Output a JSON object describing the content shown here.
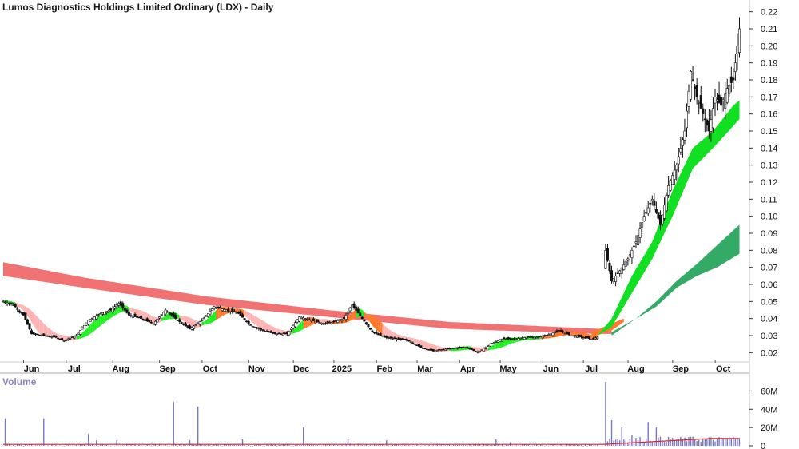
{
  "header": {
    "title": "Lumos Diagnostics Holdings Limited Ordinary (LDX) - Daily",
    "volume_label": "Volume"
  },
  "chart_data": [
    {
      "type": "candlestick",
      "title": "Lumos Diagnostics Holdings Limited Ordinary (LDX) - Daily",
      "y_axis_side": "right",
      "ylim": [
        0.015,
        0.225
      ],
      "y_ticks": [
        0.02,
        0.03,
        0.04,
        0.05,
        0.06,
        0.07,
        0.08,
        0.09,
        0.1,
        0.11,
        0.12,
        0.13,
        0.14,
        0.15,
        0.16,
        0.17,
        0.18,
        0.19,
        0.2,
        0.21,
        0.22
      ],
      "y_tick_labels": [
        "0.02",
        "0.03",
        "0.04",
        "0.05",
        "0.06",
        "0.07",
        "0.08",
        "0.09",
        "0.10",
        "0.11",
        "0.12",
        "0.13",
        "0.14",
        "0.15",
        "0.16",
        "0.17",
        "0.18",
        "0.19",
        "0.20",
        "0.21",
        "0.22"
      ],
      "x_axis": {
        "unit": "trading day index",
        "range": [
          0,
          352
        ],
        "month_labels": [
          {
            "label": "Jun",
            "index": 14
          },
          {
            "label": "Jul",
            "index": 35
          },
          {
            "label": "Aug",
            "index": 58
          },
          {
            "label": "Sep",
            "index": 81
          },
          {
            "label": "Oct",
            "index": 102
          },
          {
            "label": "Nov",
            "index": 125
          },
          {
            "label": "Dec",
            "index": 147
          },
          {
            "label": "2025",
            "index": 167
          },
          {
            "label": "Feb",
            "index": 188
          },
          {
            "label": "Mar",
            "index": 208
          },
          {
            "label": "Apr",
            "index": 229
          },
          {
            "label": "May",
            "index": 249
          },
          {
            "label": "Jun",
            "index": 270
          },
          {
            "label": "Jul",
            "index": 290
          },
          {
            "label": "Aug",
            "index": 312
          },
          {
            "label": "Sep",
            "index": 334
          },
          {
            "label": "Oct",
            "index": 355
          }
        ]
      },
      "close_path": [
        [
          0,
          0.05
        ],
        [
          5,
          0.048
        ],
        [
          10,
          0.042
        ],
        [
          14,
          0.031
        ],
        [
          20,
          0.03
        ],
        [
          26,
          0.029
        ],
        [
          30,
          0.027
        ],
        [
          36,
          0.03
        ],
        [
          42,
          0.039
        ],
        [
          48,
          0.043
        ],
        [
          53,
          0.045
        ],
        [
          57,
          0.049
        ],
        [
          62,
          0.042
        ],
        [
          68,
          0.04
        ],
        [
          74,
          0.037
        ],
        [
          80,
          0.045
        ],
        [
          86,
          0.039
        ],
        [
          92,
          0.034
        ],
        [
          98,
          0.039
        ],
        [
          104,
          0.047
        ],
        [
          110,
          0.045
        ],
        [
          116,
          0.043
        ],
        [
          122,
          0.036
        ],
        [
          128,
          0.033
        ],
        [
          134,
          0.031
        ],
        [
          140,
          0.031
        ],
        [
          146,
          0.041
        ],
        [
          152,
          0.039
        ],
        [
          158,
          0.037
        ],
        [
          163,
          0.038
        ],
        [
          168,
          0.04
        ],
        [
          172,
          0.048
        ],
        [
          177,
          0.04
        ],
        [
          182,
          0.032
        ],
        [
          188,
          0.029
        ],
        [
          194,
          0.028
        ],
        [
          200,
          0.027
        ],
        [
          206,
          0.023
        ],
        [
          212,
          0.021
        ],
        [
          218,
          0.022
        ],
        [
          224,
          0.023
        ],
        [
          229,
          0.023
        ],
        [
          234,
          0.02
        ],
        [
          240,
          0.025
        ],
        [
          246,
          0.028
        ],
        [
          252,
          0.028
        ],
        [
          258,
          0.029
        ],
        [
          264,
          0.029
        ],
        [
          270,
          0.031
        ],
        [
          274,
          0.033
        ],
        [
          280,
          0.03
        ],
        [
          286,
          0.029
        ],
        [
          290,
          0.028
        ],
        [
          293,
          0.029
        ],
        [
          297,
          0.08
        ],
        [
          300,
          0.062
        ],
        [
          304,
          0.068
        ],
        [
          308,
          0.075
        ],
        [
          312,
          0.085
        ],
        [
          316,
          0.1
        ],
        [
          320,
          0.11
        ],
        [
          324,
          0.095
        ],
        [
          328,
          0.118
        ],
        [
          332,
          0.13
        ],
        [
          336,
          0.15
        ],
        [
          339,
          0.185
        ],
        [
          342,
          0.17
        ],
        [
          345,
          0.16
        ],
        [
          348,
          0.15
        ],
        [
          351,
          0.17
        ],
        [
          354,
          0.165
        ],
        [
          357,
          0.175
        ],
        [
          360,
          0.18
        ],
        [
          363,
          0.21
        ]
      ],
      "long_term_band": {
        "color": "#f07272",
        "path": [
          [
            0,
            0.073,
            0.065
          ],
          [
            40,
            0.064,
            0.058
          ],
          [
            100,
            0.053,
            0.048
          ],
          [
            160,
            0.045,
            0.041
          ],
          [
            220,
            0.038,
            0.034
          ],
          [
            293,
            0.034,
            0.031
          ],
          [
            300,
            0.033,
            0.031
          ]
        ]
      },
      "short_term_band": {
        "colors": {
          "up": "#22ee22",
          "down": "#ffb3b3",
          "cross": "#ff7a2a"
        },
        "note": "short-term moving average ribbon"
      },
      "upper_green_band": {
        "color": "#11e022",
        "path": [
          [
            293,
            0.03,
            0.03
          ],
          [
            300,
            0.04,
            0.035
          ],
          [
            310,
            0.065,
            0.055
          ],
          [
            320,
            0.085,
            0.075
          ],
          [
            330,
            0.115,
            0.1
          ],
          [
            340,
            0.14,
            0.128
          ],
          [
            350,
            0.15,
            0.14
          ],
          [
            360,
            0.165,
            0.153
          ],
          [
            363,
            0.168,
            0.157
          ]
        ]
      },
      "lower_green_band": {
        "color": "#33aa66",
        "path": [
          [
            300,
            0.032,
            0.03
          ],
          [
            312,
            0.04,
            0.04
          ],
          [
            322,
            0.05,
            0.047
          ],
          [
            332,
            0.062,
            0.058
          ],
          [
            342,
            0.072,
            0.065
          ],
          [
            352,
            0.083,
            0.07
          ],
          [
            363,
            0.095,
            0.078
          ]
        ]
      }
    },
    {
      "type": "bar",
      "title": "Volume",
      "y_axis_side": "right",
      "ylim": [
        0,
        70
      ],
      "unit": "M",
      "y_ticks": [
        0,
        20,
        40,
        60
      ],
      "y_tick_labels": [
        "0",
        "20M",
        "40M",
        "60M"
      ],
      "spikes": [
        {
          "index": 1,
          "value": 30
        },
        {
          "index": 20,
          "value": 30
        },
        {
          "index": 42,
          "value": 13
        },
        {
          "index": 46,
          "value": 6
        },
        {
          "index": 56,
          "value": 6
        },
        {
          "index": 84,
          "value": 48
        },
        {
          "index": 96,
          "value": 43
        },
        {
          "index": 92,
          "value": 6
        },
        {
          "index": 118,
          "value": 7
        },
        {
          "index": 148,
          "value": 20
        },
        {
          "index": 170,
          "value": 7
        },
        {
          "index": 189,
          "value": 6
        },
        {
          "index": 243,
          "value": 7
        },
        {
          "index": 250,
          "value": 4
        },
        {
          "index": 297,
          "value": 70
        },
        {
          "index": 300,
          "value": 28
        },
        {
          "index": 305,
          "value": 20
        },
        {
          "index": 310,
          "value": 12
        },
        {
          "index": 318,
          "value": 26
        },
        {
          "index": 322,
          "value": 20
        },
        {
          "index": 340,
          "value": 10
        },
        {
          "index": 360,
          "value": 10
        }
      ],
      "average_line_color": "#dd2222",
      "bar_color": "#7777cc"
    }
  ]
}
